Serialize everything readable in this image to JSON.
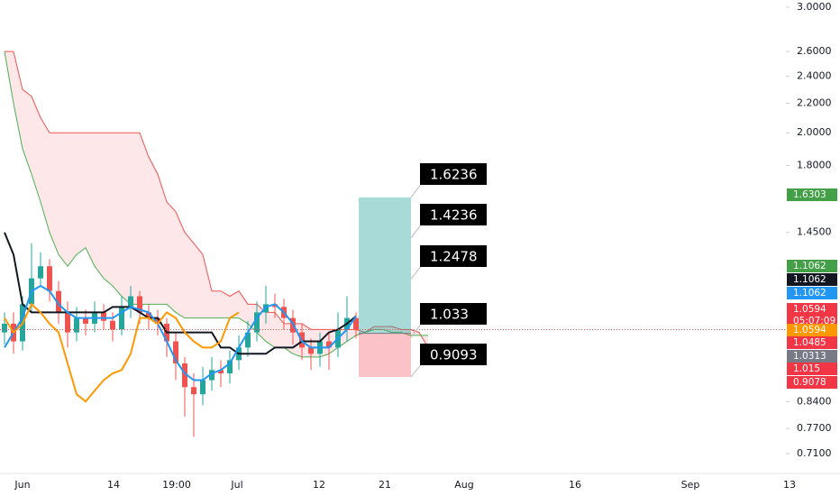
{
  "chart_data": {
    "type": "candlestick",
    "log_scale": true,
    "ylim": [
      0.666,
      3.07
    ],
    "yticks": [
      {
        "value": 3.0,
        "label": "3.0000"
      },
      {
        "value": 2.6,
        "label": "2.6000"
      },
      {
        "value": 2.4,
        "label": "2.4000"
      },
      {
        "value": 2.2,
        "label": "2.2000"
      },
      {
        "value": 2.0,
        "label": "2.0000"
      },
      {
        "value": 1.8,
        "label": "1.8000"
      },
      {
        "value": 1.45,
        "label": "1.4500"
      },
      {
        "value": 0.84,
        "label": "0.8400"
      },
      {
        "value": 0.77,
        "label": "0.7700"
      },
      {
        "value": 0.71,
        "label": "0.7100"
      }
    ],
    "xtick_labels": [
      "Jun",
      "14",
      "19:00",
      "Jul",
      "12",
      "21",
      "Aug",
      "16",
      "Sep",
      "13"
    ],
    "candles": {
      "up_color": "#26a69a",
      "down_color": "#ef5350",
      "open": [
        1.05,
        1.08,
        1.02,
        1.15,
        1.25,
        1.3,
        1.2,
        1.12,
        1.05,
        1.1,
        1.08,
        1.12,
        1.09,
        1.06,
        1.14,
        1.18,
        1.12,
        1.1,
        1.08,
        1.02,
        0.95,
        0.88,
        0.86,
        0.9,
        0.93,
        0.92,
        0.96,
        1.0,
        1.05,
        1.12,
        1.15,
        1.14,
        1.1,
        1.05,
        1.0,
        0.98,
        1.02,
        1.0,
        1.06,
        1.1
      ],
      "high": [
        1.12,
        1.12,
        1.18,
        1.4,
        1.36,
        1.33,
        1.24,
        1.16,
        1.14,
        1.13,
        1.16,
        1.15,
        1.12,
        1.18,
        1.22,
        1.2,
        1.15,
        1.13,
        1.1,
        1.05,
        0.97,
        0.92,
        0.94,
        0.97,
        0.96,
        0.99,
        1.04,
        1.09,
        1.16,
        1.22,
        1.19,
        1.17,
        1.13,
        1.08,
        1.03,
        1.05,
        1.05,
        1.12,
        1.18,
        1.12
      ],
      "low": [
        1.01,
        0.98,
        0.99,
        1.12,
        1.22,
        1.16,
        1.08,
        1.0,
        1.02,
        1.04,
        1.05,
        1.06,
        1.02,
        1.04,
        1.1,
        1.08,
        1.06,
        1.04,
        0.97,
        0.9,
        0.8,
        0.75,
        0.83,
        0.87,
        0.88,
        0.89,
        0.93,
        0.97,
        1.02,
        1.08,
        1.1,
        1.06,
        1.01,
        0.96,
        0.93,
        0.94,
        0.93,
        0.97,
        1.02,
        1.03
      ],
      "close": [
        1.08,
        1.02,
        1.15,
        1.25,
        1.3,
        1.2,
        1.12,
        1.05,
        1.1,
        1.08,
        1.12,
        1.09,
        1.06,
        1.14,
        1.18,
        1.12,
        1.1,
        1.08,
        1.02,
        0.95,
        0.88,
        0.86,
        0.9,
        0.93,
        0.92,
        0.96,
        1.0,
        1.05,
        1.12,
        1.15,
        1.14,
        1.1,
        1.05,
        1.0,
        0.98,
        1.02,
        1.0,
        1.06,
        1.1,
        1.0594
      ]
    },
    "cloud": {
      "fill": "rgba(242,54,69,0.12)",
      "upper": {
        "color": "#ef5350",
        "values": [
          2.6,
          2.6,
          2.3,
          2.25,
          2.1,
          2.0,
          2.0,
          2.0,
          2.0,
          2.0,
          2.0,
          2.0,
          2.0,
          2.0,
          2.0,
          2.0,
          1.85,
          1.75,
          1.6,
          1.55,
          1.45,
          1.4,
          1.35,
          1.2,
          1.2,
          1.18,
          1.2,
          1.15,
          1.15,
          1.12,
          1.12,
          1.08,
          1.08,
          1.08,
          1.06,
          1.06,
          1.06,
          1.06,
          1.06,
          1.06,
          1.05,
          1.07,
          1.07,
          1.07,
          1.06,
          1.06,
          1.05,
          1.0
        ]
      },
      "lower": {
        "color": "#4caf50",
        "values": [
          2.6,
          2.2,
          1.9,
          1.75,
          1.6,
          1.45,
          1.35,
          1.3,
          1.35,
          1.38,
          1.3,
          1.25,
          1.22,
          1.18,
          1.15,
          1.15,
          1.15,
          1.15,
          1.15,
          1.12,
          1.1,
          1.1,
          1.1,
          1.1,
          1.1,
          1.1,
          1.1,
          1.08,
          1.05,
          1.02,
          1.0,
          1.0,
          0.98,
          0.97,
          0.97,
          0.97,
          0.98,
          1.0,
          1.02,
          1.04,
          1.05,
          1.06,
          1.06,
          1.05,
          1.05,
          1.04,
          1.04,
          1.04
        ]
      }
    },
    "lines": [
      {
        "color": "#131722",
        "values": [
          1.45,
          1.35,
          1.15,
          1.12,
          1.12,
          1.12,
          1.12,
          1.12,
          1.12,
          1.12,
          1.12,
          1.12,
          1.14,
          1.14,
          1.14,
          1.12,
          1.1,
          1.1,
          1.05,
          1.05,
          1.05,
          1.05,
          1.05,
          1.05,
          1.0,
          1.0,
          0.98,
          0.98,
          0.98,
          0.98,
          1.0,
          1.0,
          1.0,
          1.02,
          1.02,
          1.02,
          1.05,
          1.06,
          1.08,
          1.1062
        ]
      },
      {
        "color": "#2196f3",
        "values": [
          1.0,
          1.05,
          1.1,
          1.2,
          1.22,
          1.2,
          1.15,
          1.12,
          1.1,
          1.1,
          1.1,
          1.1,
          1.1,
          1.12,
          1.14,
          1.13,
          1.12,
          1.08,
          1.02,
          0.96,
          0.92,
          0.9,
          0.9,
          0.92,
          0.93,
          0.95,
          1.0,
          1.05,
          1.1,
          1.14,
          1.15,
          1.12,
          1.08,
          1.02,
          1.0,
          1.0,
          1.0,
          1.03,
          1.06,
          1.1062
        ]
      },
      {
        "color": "#ff9800",
        "values": [
          1.1,
          1.05,
          1.08,
          1.15,
          1.12,
          1.08,
          1.05,
          0.95,
          0.86,
          0.84,
          0.87,
          0.9,
          0.92,
          0.93,
          0.98,
          1.1,
          1.1,
          1.08,
          1.12,
          1.1,
          1.05,
          1.02,
          1.0,
          1.0,
          1.02,
          1.1,
          1.12,
          null,
          null,
          null,
          null,
          null,
          null,
          null,
          null,
          null,
          null,
          null,
          null,
          null
        ]
      }
    ],
    "position": {
      "target": 1.6236,
      "entry": 1.047,
      "stop": 0.9093
    },
    "callouts": [
      1.6236,
      1.4236,
      1.2478,
      1.033,
      0.9093
    ],
    "price_badges": [
      {
        "value": 1.6303,
        "color": "#43a047"
      },
      {
        "value": 1.1062,
        "color": "#43a047"
      },
      {
        "value": 1.1062,
        "color": "#131722"
      },
      {
        "value": 1.1062,
        "color": "#2196f3"
      },
      {
        "value": 1.0594,
        "color": "#f23645",
        "countdown": "05:07:09"
      },
      {
        "value": 1.0594,
        "color": "#ff9800"
      },
      {
        "value": 1.0485,
        "color": "#f23645"
      },
      {
        "value": 1.0313,
        "color": "#787b86"
      },
      {
        "value": 1.015,
        "color": "#f23645"
      },
      {
        "value": 0.9078,
        "color": "#f23645"
      }
    ]
  }
}
